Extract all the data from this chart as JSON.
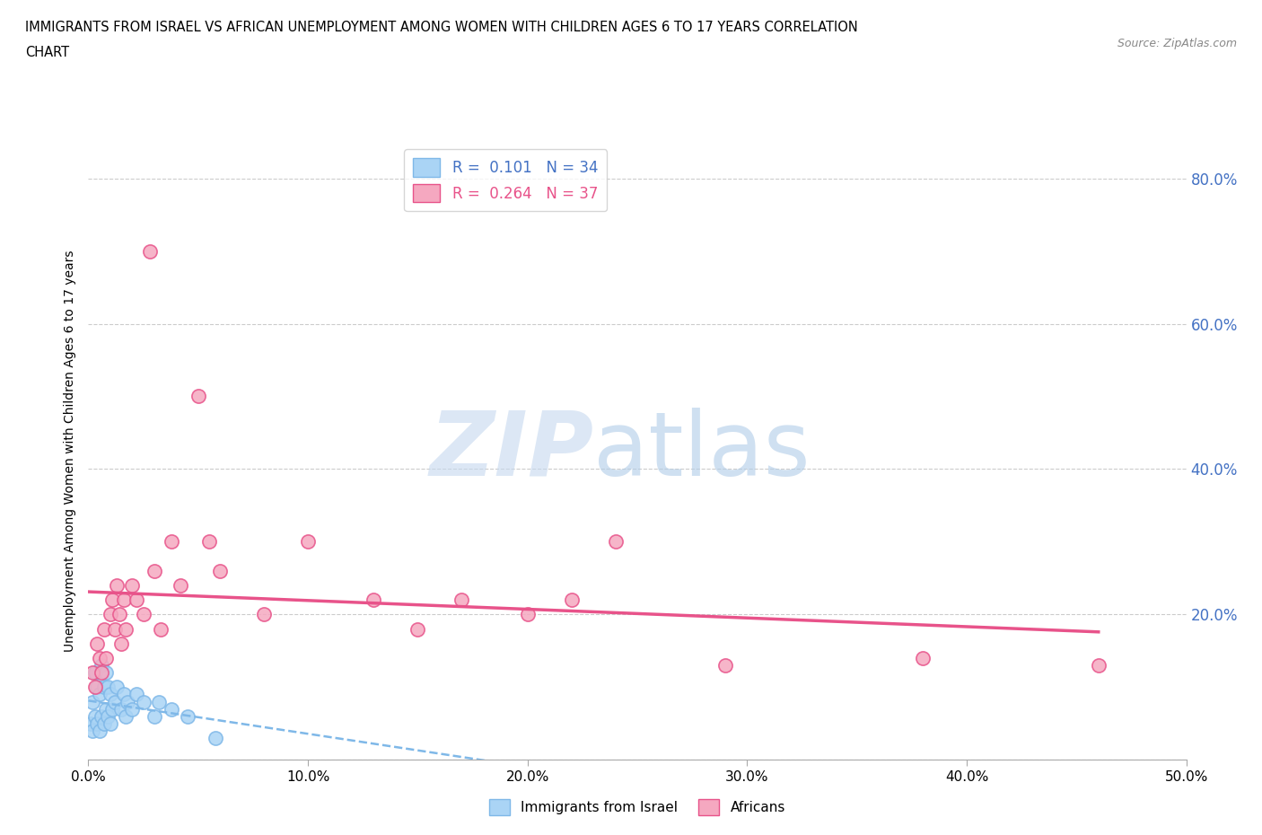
{
  "title_line1": "IMMIGRANTS FROM ISRAEL VS AFRICAN UNEMPLOYMENT AMONG WOMEN WITH CHILDREN AGES 6 TO 17 YEARS CORRELATION",
  "title_line2": "CHART",
  "source_text": "Source: ZipAtlas.com",
  "ylabel": "Unemployment Among Women with Children Ages 6 to 17 years",
  "xlim": [
    0.0,
    0.5
  ],
  "ylim": [
    0.0,
    0.85
  ],
  "xticks": [
    0.0,
    0.1,
    0.2,
    0.3,
    0.4,
    0.5
  ],
  "yticks": [
    0.0,
    0.2,
    0.4,
    0.6,
    0.8
  ],
  "xticklabels": [
    "0.0%",
    "10.0%",
    "20.0%",
    "30.0%",
    "40.0%",
    "50.0%"
  ],
  "yticklabels_right": [
    "",
    "20.0%",
    "40.0%",
    "60.0%",
    "80.0%"
  ],
  "legend_color1": "#aad4f5",
  "legend_color2": "#f5a8c0",
  "trend_color1": "#7fb8e8",
  "trend_color2": "#e8538a",
  "scatter_color1": "#aad4f5",
  "scatter_color2": "#f5a8c0",
  "watermark_color_zip": "#c5d8ef",
  "watermark_color_atlas": "#b0cce8",
  "background_color": "#ffffff",
  "grid_color": "#cccccc",
  "israel_x": [
    0.001,
    0.002,
    0.002,
    0.003,
    0.003,
    0.004,
    0.004,
    0.005,
    0.005,
    0.006,
    0.006,
    0.007,
    0.007,
    0.008,
    0.008,
    0.009,
    0.009,
    0.01,
    0.01,
    0.011,
    0.012,
    0.013,
    0.015,
    0.016,
    0.017,
    0.018,
    0.02,
    0.022,
    0.025,
    0.03,
    0.032,
    0.038,
    0.045,
    0.058
  ],
  "israel_y": [
    0.05,
    0.04,
    0.08,
    0.06,
    0.12,
    0.05,
    0.1,
    0.04,
    0.09,
    0.06,
    0.13,
    0.05,
    0.1,
    0.07,
    0.12,
    0.06,
    0.1,
    0.05,
    0.09,
    0.07,
    0.08,
    0.1,
    0.07,
    0.09,
    0.06,
    0.08,
    0.07,
    0.09,
    0.08,
    0.06,
    0.08,
    0.07,
    0.06,
    0.03
  ],
  "african_x": [
    0.002,
    0.003,
    0.004,
    0.005,
    0.006,
    0.007,
    0.008,
    0.01,
    0.011,
    0.012,
    0.013,
    0.014,
    0.015,
    0.016,
    0.017,
    0.02,
    0.022,
    0.025,
    0.028,
    0.03,
    0.033,
    0.038,
    0.042,
    0.05,
    0.055,
    0.06,
    0.08,
    0.1,
    0.13,
    0.15,
    0.17,
    0.2,
    0.22,
    0.24,
    0.29,
    0.38,
    0.46
  ],
  "african_y": [
    0.12,
    0.1,
    0.16,
    0.14,
    0.12,
    0.18,
    0.14,
    0.2,
    0.22,
    0.18,
    0.24,
    0.2,
    0.16,
    0.22,
    0.18,
    0.24,
    0.22,
    0.2,
    0.7,
    0.26,
    0.18,
    0.3,
    0.24,
    0.5,
    0.3,
    0.26,
    0.2,
    0.3,
    0.22,
    0.18,
    0.22,
    0.2,
    0.22,
    0.3,
    0.13,
    0.14,
    0.13
  ]
}
